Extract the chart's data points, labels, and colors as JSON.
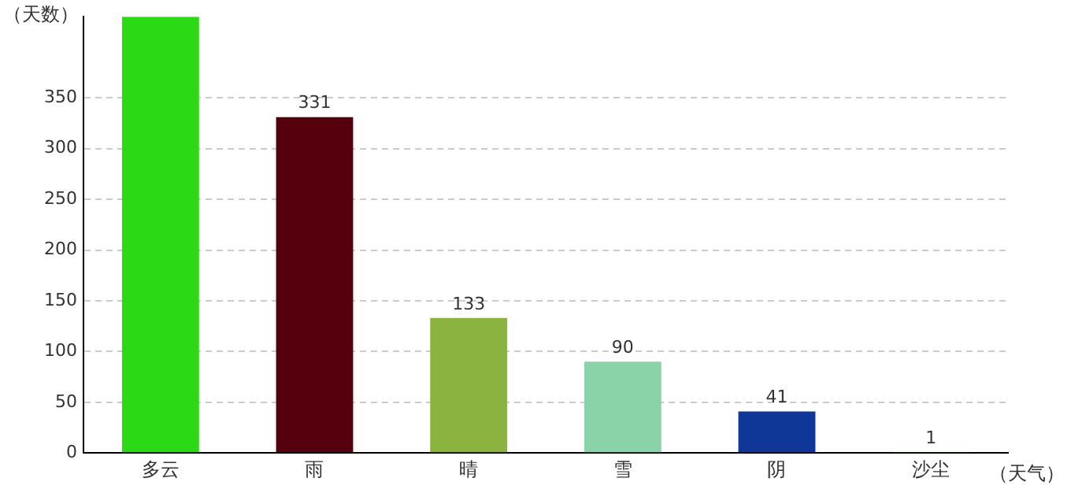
{
  "chart_data": {
    "type": "bar",
    "xlabel": "（天气）",
    "ylabel": "（天数）",
    "categories": [
      "多云",
      "雨",
      "晴",
      "雪",
      "阴",
      "沙尘"
    ],
    "values": [
      430,
      331,
      133,
      90,
      41,
      1
    ],
    "colors": [
      "#2bd915",
      "#55000c",
      "#8ab43f",
      "#8ad3a9",
      "#0f3797",
      "#1f5a10"
    ],
    "value_labels": [
      null,
      "331",
      "133",
      "90",
      "41",
      "1"
    ],
    "ylim": [
      0,
      430
    ],
    "yticks": [
      0,
      50,
      100,
      150,
      200,
      250,
      300,
      350
    ],
    "grid": "y"
  }
}
